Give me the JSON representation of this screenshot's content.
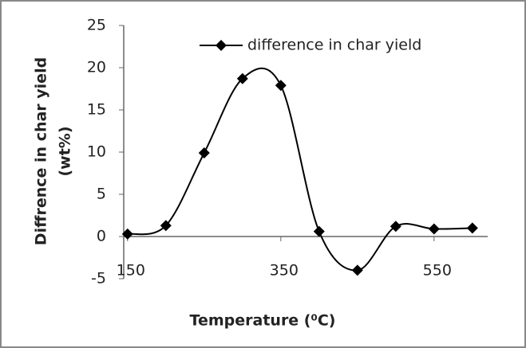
{
  "chart_data": {
    "type": "line",
    "x_label": "Temperature (⁰C)",
    "y_label": [
      "Diffrence in char yield",
      "(wt%)"
    ],
    "x": [
      150,
      200,
      250,
      300,
      350,
      400,
      450,
      500,
      550,
      600
    ],
    "series": [
      {
        "name": "difference in char yield",
        "color": "#000000",
        "values": [
          0.3,
          1.3,
          9.9,
          18.7,
          17.9,
          0.6,
          -4,
          1.2,
          0.9,
          1.0
        ]
      }
    ],
    "xlim": [
      145,
      620
    ],
    "xticks": [
      150,
      350,
      550
    ],
    "ylim": [
      -5,
      25
    ],
    "yticks": [
      -5,
      0,
      5,
      10,
      15,
      20,
      25
    ],
    "smooth": true,
    "legend": "top-right"
  }
}
